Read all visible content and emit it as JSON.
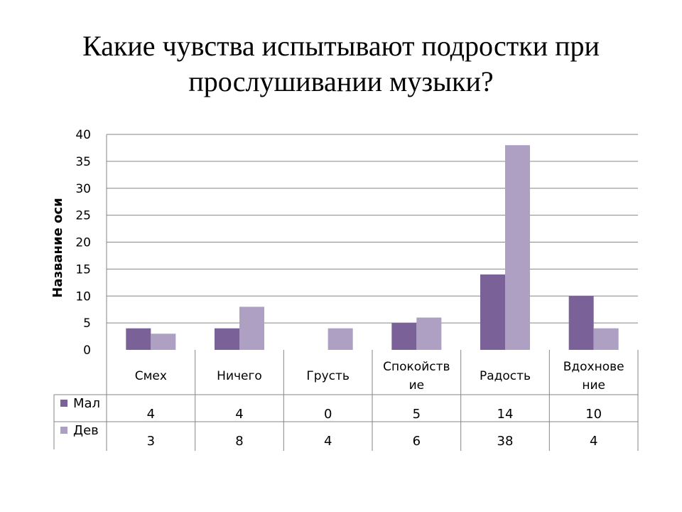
{
  "title_lines": [
    "Какие чувства испытывают подростки при",
    "прослушивании музыки?"
  ],
  "chart_data": {
    "type": "bar",
    "title": "Какие чувства испытывают подростки при прослушивании музыки?",
    "ylabel": "Название оси",
    "xlabel": "",
    "ylim": [
      0,
      40
    ],
    "yticks": [
      0,
      5,
      10,
      15,
      20,
      25,
      30,
      35,
      40
    ],
    "grid": true,
    "legend": "data-table",
    "categories": [
      "Смех",
      "Ничего",
      "Грусть",
      "Спокойствие",
      "Радость",
      "Вдохновение"
    ],
    "category_label_lines": [
      [
        "Смех"
      ],
      [
        "Ничего"
      ],
      [
        "Грусть"
      ],
      [
        "Спокойств",
        "ие"
      ],
      [
        "Радость"
      ],
      [
        "Вдохнове",
        "ние"
      ]
    ],
    "series": [
      {
        "name": "Мал",
        "values": [
          4,
          4,
          0,
          5,
          14,
          10
        ],
        "color": "#7a6299"
      },
      {
        "name": "Дев",
        "values": [
          3,
          8,
          4,
          6,
          38,
          4
        ],
        "color": "#ada0c3"
      }
    ]
  }
}
